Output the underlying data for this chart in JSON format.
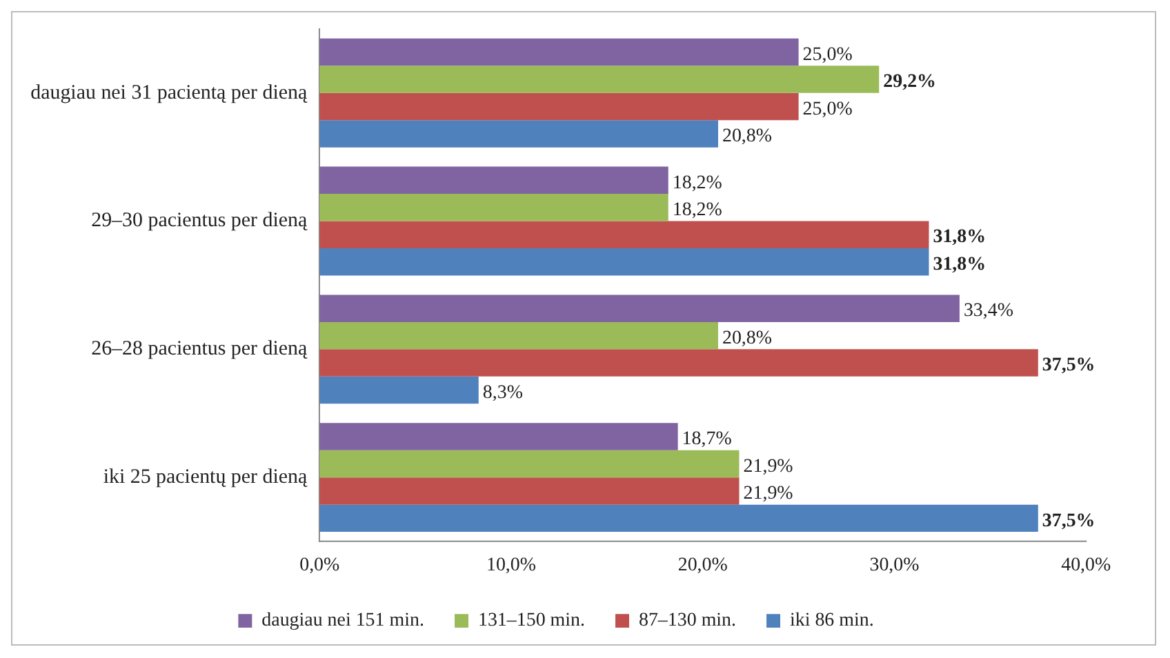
{
  "chart_data": {
    "type": "bar",
    "orientation": "horizontal",
    "categories": [
      "daugiau nei 31 pacientą per dieną",
      "29–30 pacientus per dieną",
      "26–28 pacientus per dieną",
      "iki 25 pacientų per dieną"
    ],
    "series": [
      {
        "name": "daugiau nei 151 min.",
        "color": "#8064a2",
        "values": [
          25.0,
          18.2,
          33.4,
          18.7
        ],
        "value_labels": [
          "25,0%",
          "18,2%",
          "33,4%",
          "18,7%"
        ]
      },
      {
        "name": "131–150 min.",
        "color": "#9bbb59",
        "values": [
          29.2,
          18.2,
          20.8,
          21.9
        ],
        "value_labels": [
          "29,2%",
          "18,2%",
          "20,8%",
          "21,9%"
        ]
      },
      {
        "name": "87–130 min.",
        "color": "#c0504d",
        "values": [
          25.0,
          31.8,
          37.5,
          21.9
        ],
        "value_labels": [
          "25,0%",
          "31,8%",
          "37,5%",
          "21,9%"
        ]
      },
      {
        "name": "iki 86 min.",
        "color": "#4f81bd",
        "values": [
          20.8,
          31.8,
          8.3,
          37.5
        ],
        "value_labels": [
          "20,8%",
          "31,8%",
          "8,3%",
          "37,5%"
        ]
      }
    ],
    "xlim": [
      0,
      40
    ],
    "xticks": [
      {
        "value": 0,
        "label": "0,0%"
      },
      {
        "value": 10,
        "label": "10,0%"
      },
      {
        "value": 20,
        "label": "20,0%"
      },
      {
        "value": 30,
        "label": "30,0%"
      },
      {
        "value": 40,
        "label": "40,0%"
      }
    ],
    "grid": false,
    "legend": "bottom"
  }
}
